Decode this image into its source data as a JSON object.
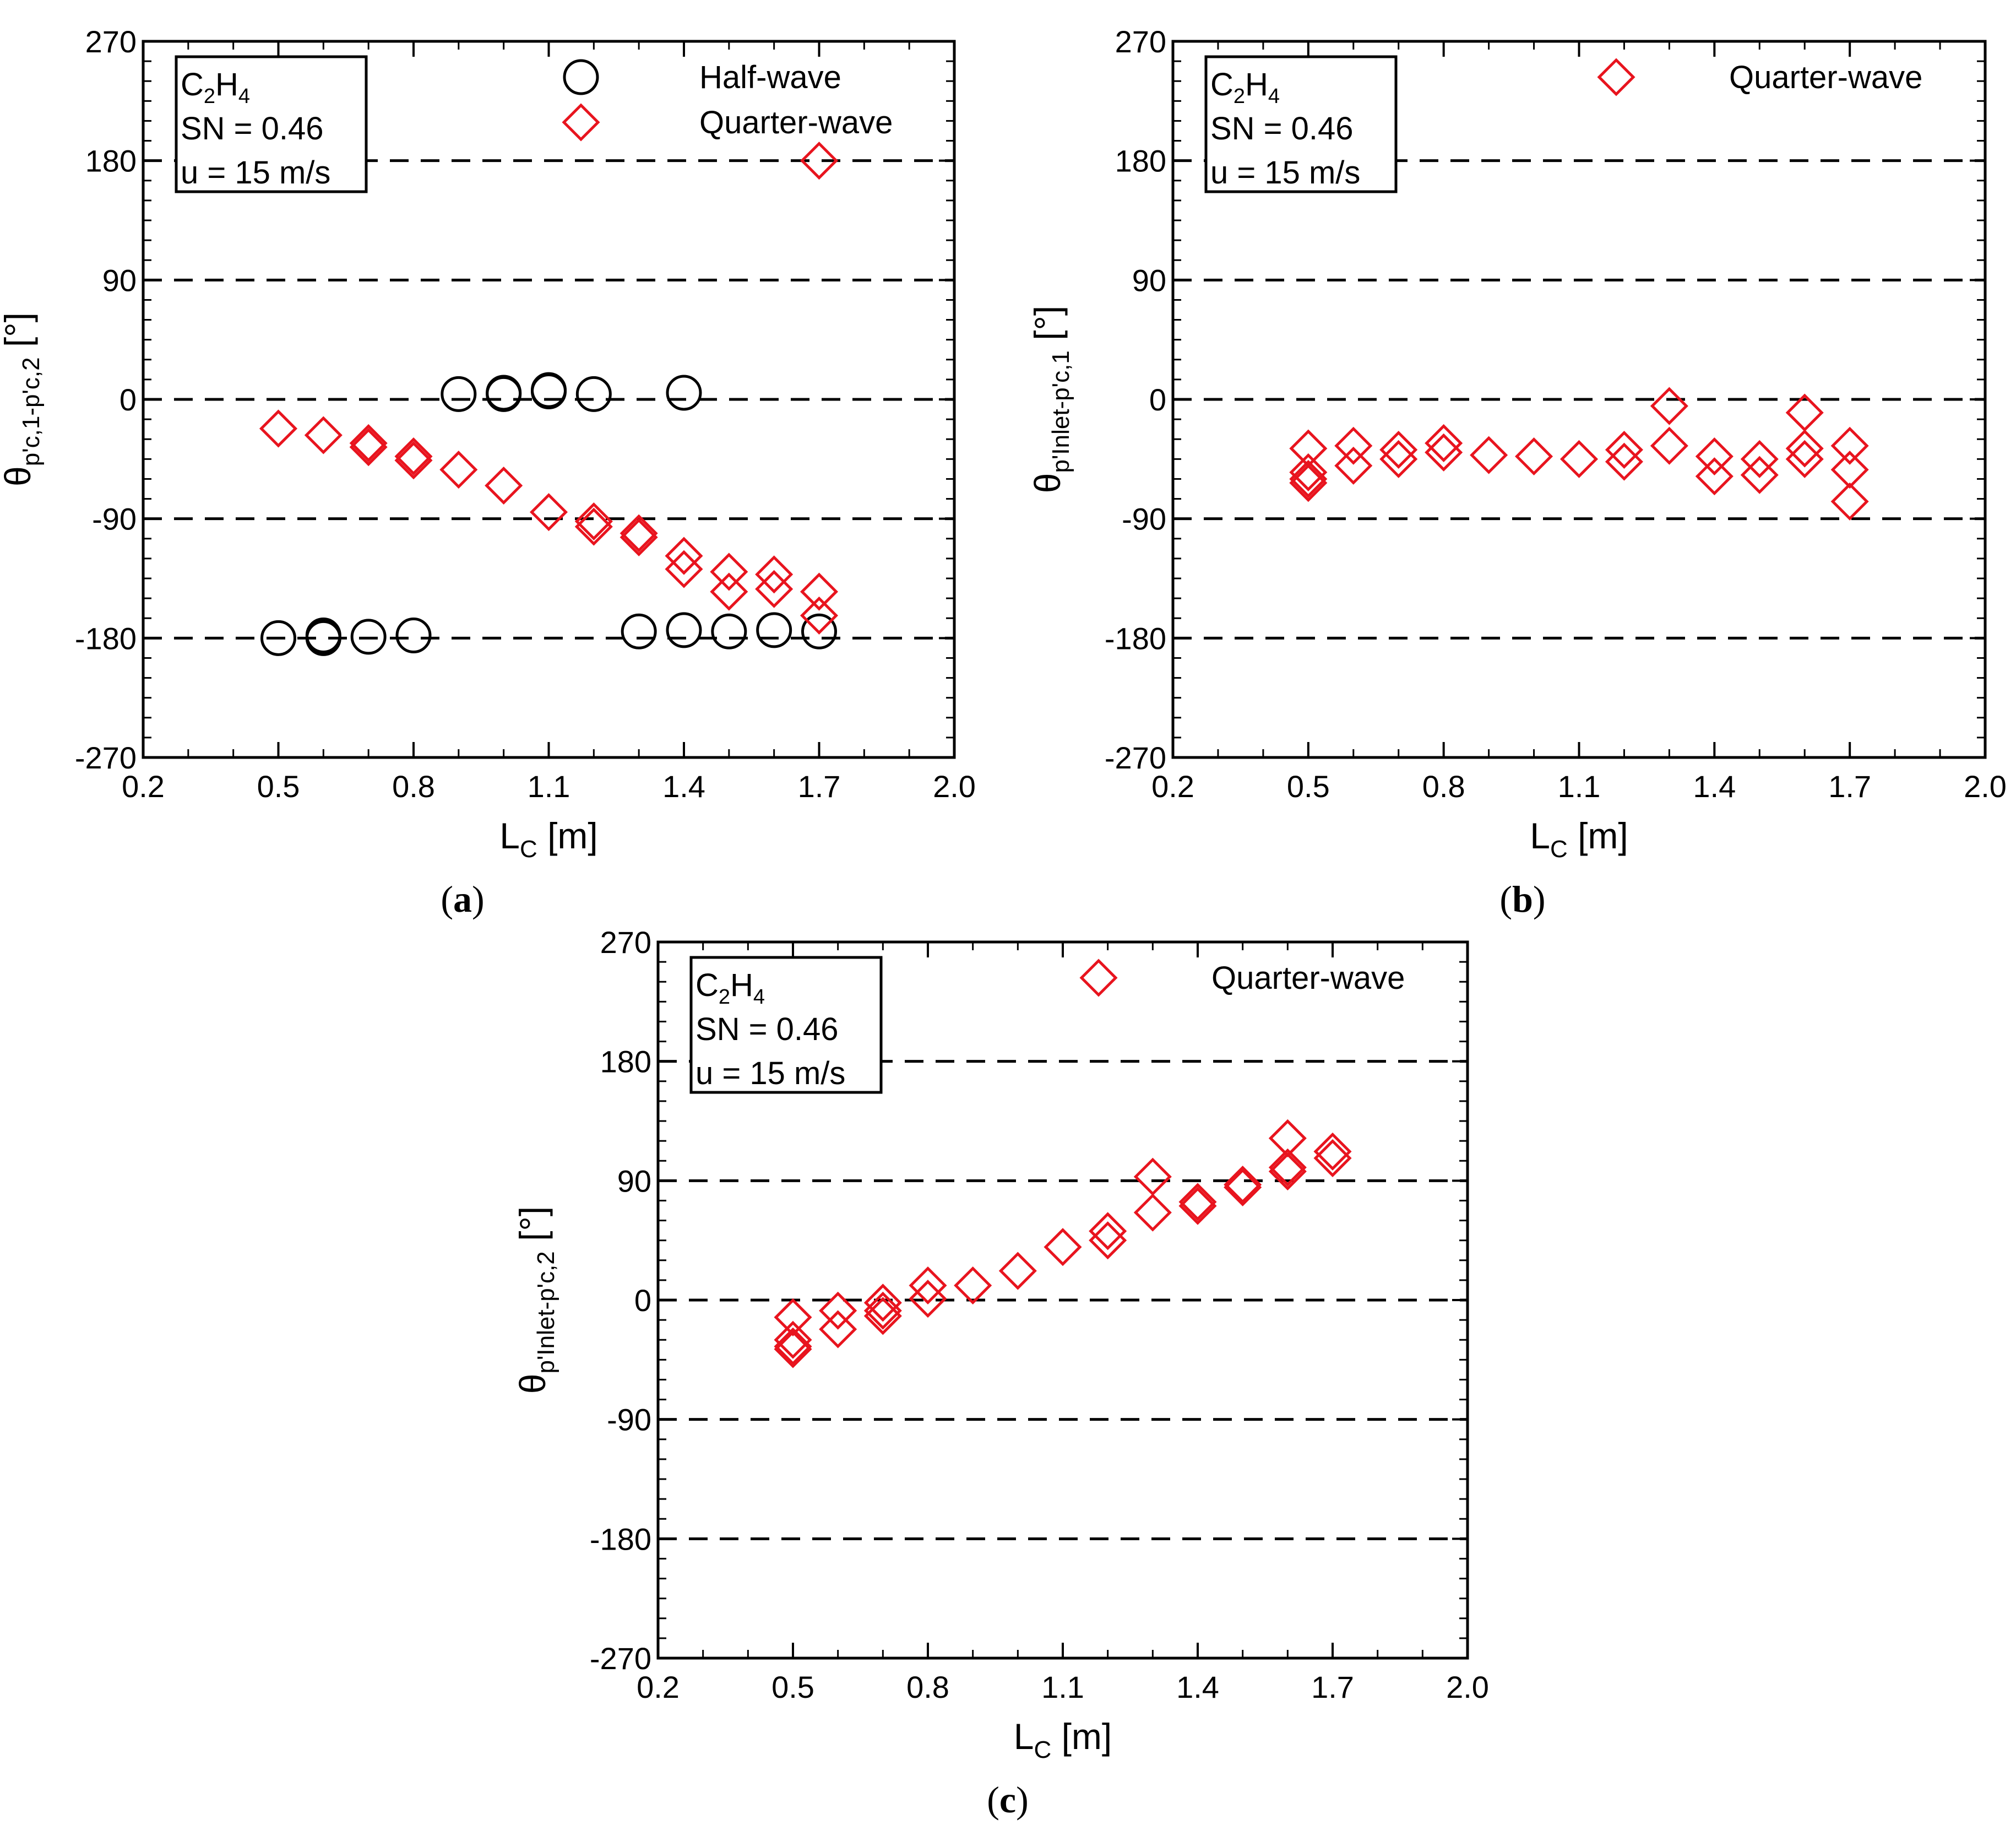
{
  "colors": {
    "half_wave": "#000000",
    "quarter_wave": "#e8141e",
    "axis": "#000000"
  },
  "chart_data": [
    {
      "id": "a",
      "type": "scatter",
      "caption_letter": "a",
      "xlabel_main": "L",
      "xlabel_sub": "C",
      "xlabel_unit": " [m]",
      "ylabel_main": "θ",
      "ylabel_sub": "p'c,1-p'c,2",
      "ylabel_unit": " [°]",
      "xlim": [
        0.2,
        2.0
      ],
      "ylim": [
        -270,
        270
      ],
      "xticks": [
        "0.2",
        "0.5",
        "0.8",
        "1.1",
        "1.4",
        "1.7",
        "2.0"
      ],
      "yticks": [
        "270",
        "180",
        "90",
        "0",
        "-90",
        "-180",
        "-270"
      ],
      "dashed_gridlines": [
        180,
        90,
        0,
        -90,
        -180
      ],
      "info": {
        "fuel_main": "C",
        "fuel_sub1": "2",
        "fuel_mid": "H",
        "fuel_sub2": "4",
        "swirl": "SN = 0.46",
        "velocity": "u = 15 m/s"
      },
      "series": [
        {
          "name": "Half-wave",
          "marker": "circle",
          "points": [
            [
              0.5,
              -180
            ],
            [
              0.6,
              -178
            ],
            [
              0.6,
              -180
            ],
            [
              0.7,
              -179
            ],
            [
              0.8,
              -178
            ],
            [
              0.9,
              4
            ],
            [
              1.0,
              5
            ],
            [
              1.0,
              4
            ],
            [
              1.1,
              6
            ],
            [
              1.1,
              7
            ],
            [
              1.2,
              4
            ],
            [
              1.3,
              -175
            ],
            [
              1.4,
              5
            ],
            [
              1.4,
              -174
            ],
            [
              1.5,
              -175
            ],
            [
              1.6,
              -174
            ],
            [
              1.7,
              -175
            ]
          ]
        },
        {
          "name": "Quarter-wave",
          "marker": "diamond",
          "points": [
            [
              0.5,
              -22
            ],
            [
              0.6,
              -27
            ],
            [
              0.7,
              -33
            ],
            [
              0.7,
              -36
            ],
            [
              0.8,
              -43
            ],
            [
              0.8,
              -46
            ],
            [
              0.9,
              -53
            ],
            [
              1.0,
              -65
            ],
            [
              1.1,
              -85
            ],
            [
              1.2,
              -92
            ],
            [
              1.2,
              -96
            ],
            [
              1.3,
              -101
            ],
            [
              1.3,
              -104
            ],
            [
              1.4,
              -118
            ],
            [
              1.4,
              -128
            ],
            [
              1.5,
              -130
            ],
            [
              1.5,
              -145
            ],
            [
              1.6,
              -132
            ],
            [
              1.6,
              -143
            ],
            [
              1.7,
              -145
            ],
            [
              1.7,
              -163
            ],
            [
              1.7,
              180
            ]
          ]
        }
      ]
    },
    {
      "id": "b",
      "type": "scatter",
      "caption_letter": "b",
      "xlabel_main": "L",
      "xlabel_sub": "C",
      "xlabel_unit": " [m]",
      "ylabel_main": "θ",
      "ylabel_sub": "p'Inlet-p'c,1",
      "ylabel_unit": " [°]",
      "xlim": [
        0.2,
        2.0
      ],
      "ylim": [
        -270,
        270
      ],
      "xticks": [
        "0.2",
        "0.5",
        "0.8",
        "1.1",
        "1.4",
        "1.7",
        "2.0"
      ],
      "yticks": [
        "270",
        "180",
        "90",
        "0",
        "-90",
        "-180",
        "-270"
      ],
      "dashed_gridlines": [
        180,
        90,
        0,
        -90,
        -180
      ],
      "info": {
        "fuel_main": "C",
        "fuel_sub1": "2",
        "fuel_mid": "H",
        "fuel_sub2": "4",
        "swirl": "SN = 0.46",
        "velocity": "u = 15 m/s"
      },
      "series": [
        {
          "name": "Quarter-wave",
          "marker": "diamond",
          "points": [
            [
              0.5,
              -37
            ],
            [
              0.5,
              -55
            ],
            [
              0.5,
              -60
            ],
            [
              0.5,
              -63
            ],
            [
              0.6,
              -35
            ],
            [
              0.6,
              -50
            ],
            [
              0.7,
              -38
            ],
            [
              0.7,
              -45
            ],
            [
              0.8,
              -33
            ],
            [
              0.8,
              -40
            ],
            [
              0.9,
              -42
            ],
            [
              1.0,
              -43
            ],
            [
              1.1,
              -45
            ],
            [
              1.2,
              -38
            ],
            [
              1.2,
              -47
            ],
            [
              1.3,
              -5
            ],
            [
              1.3,
              -35
            ],
            [
              1.4,
              -43
            ],
            [
              1.4,
              -58
            ],
            [
              1.5,
              -45
            ],
            [
              1.5,
              -57
            ],
            [
              1.6,
              -10
            ],
            [
              1.6,
              -37
            ],
            [
              1.6,
              -45
            ],
            [
              1.7,
              -35
            ],
            [
              1.7,
              -53
            ],
            [
              1.7,
              -77
            ]
          ]
        }
      ]
    },
    {
      "id": "c",
      "type": "scatter",
      "caption_letter": "c",
      "xlabel_main": "L",
      "xlabel_sub": "C",
      "xlabel_unit": " [m]",
      "ylabel_main": "θ",
      "ylabel_sub": "p'Inlet-p'c,2",
      "ylabel_unit": " [°]",
      "xlim": [
        0.2,
        2.0
      ],
      "ylim": [
        -270,
        270
      ],
      "xticks": [
        "0.2",
        "0.5",
        "0.8",
        "1.1",
        "1.4",
        "1.7",
        "2.0"
      ],
      "yticks": [
        "270",
        "180",
        "90",
        "0",
        "-90",
        "-180",
        "-270"
      ],
      "dashed_gridlines": [
        180,
        90,
        0,
        -90,
        -180
      ],
      "info": {
        "fuel_main": "C",
        "fuel_sub1": "2",
        "fuel_mid": "H",
        "fuel_sub2": "4",
        "swirl": "SN = 0.46",
        "velocity": "u = 15 m/s"
      },
      "series": [
        {
          "name": "Quarter-wave",
          "marker": "diamond",
          "points": [
            [
              0.5,
              -13
            ],
            [
              0.5,
              -30
            ],
            [
              0.5,
              -35
            ],
            [
              0.5,
              -37
            ],
            [
              0.6,
              -8
            ],
            [
              0.6,
              -22
            ],
            [
              0.7,
              -2
            ],
            [
              0.7,
              -8
            ],
            [
              0.7,
              -12
            ],
            [
              0.8,
              11
            ],
            [
              0.8,
              1
            ],
            [
              0.9,
              11
            ],
            [
              1.0,
              22
            ],
            [
              1.1,
              40
            ],
            [
              1.2,
              52
            ],
            [
              1.2,
              45
            ],
            [
              1.3,
              93
            ],
            [
              1.3,
              66
            ],
            [
              1.4,
              74
            ],
            [
              1.4,
              71
            ],
            [
              1.5,
              87
            ],
            [
              1.5,
              85
            ],
            [
              1.6,
              122
            ],
            [
              1.6,
              100
            ],
            [
              1.6,
              97
            ],
            [
              1.7,
              112
            ],
            [
              1.7,
              107
            ]
          ]
        }
      ]
    }
  ]
}
